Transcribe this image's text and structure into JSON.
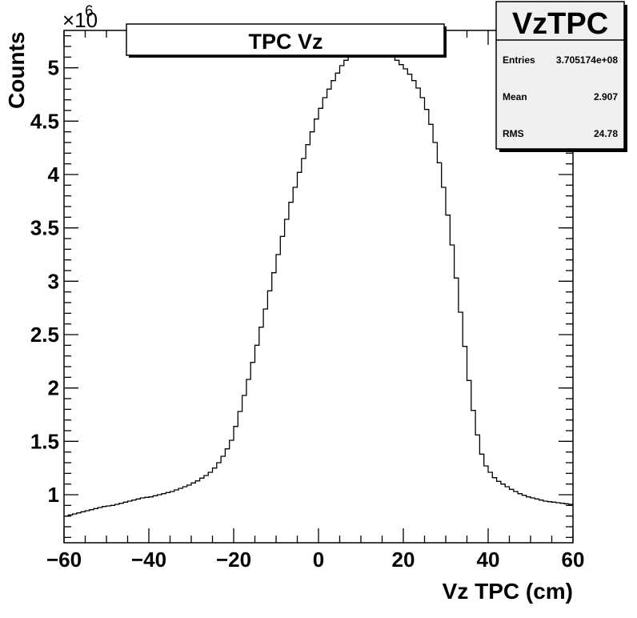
{
  "chart_data": {
    "type": "histogram",
    "title": "TPC Vz",
    "xlabel": "Vz TPC (cm)",
    "ylabel": "Counts",
    "y_multiplier_label": "×10",
    "y_multiplier_exp": "6",
    "xlim": [
      -60,
      60
    ],
    "ylim": [
      0.55,
      5.35
    ],
    "x_ticks": [
      -60,
      -40,
      -20,
      0,
      20,
      40,
      60
    ],
    "x_tick_labels": [
      "−60",
      "−40",
      "−20",
      "0",
      "20",
      "40",
      "60"
    ],
    "y_ticks": [
      1,
      1.5,
      2,
      2.5,
      3,
      3.5,
      4,
      4.5,
      5
    ],
    "y_tick_labels": [
      "1",
      "1.5",
      "2",
      "2.5",
      "3",
      "3.5",
      "4",
      "4.5",
      "5"
    ],
    "bin_width": 1,
    "bin_low_edge": -60,
    "values": [
      0.8,
      0.81,
      0.82,
      0.83,
      0.84,
      0.85,
      0.86,
      0.87,
      0.88,
      0.89,
      0.895,
      0.9,
      0.91,
      0.92,
      0.93,
      0.94,
      0.95,
      0.96,
      0.97,
      0.975,
      0.98,
      0.99,
      1.0,
      1.01,
      1.02,
      1.03,
      1.045,
      1.06,
      1.075,
      1.09,
      1.11,
      1.13,
      1.155,
      1.18,
      1.21,
      1.25,
      1.3,
      1.36,
      1.43,
      1.51,
      1.64,
      1.78,
      1.93,
      2.08,
      2.24,
      2.4,
      2.57,
      2.74,
      2.91,
      3.08,
      3.25,
      3.42,
      3.58,
      3.74,
      3.88,
      4.02,
      4.15,
      4.28,
      4.4,
      4.52,
      4.62,
      4.72,
      4.8,
      4.88,
      4.95,
      5.02,
      5.07,
      5.12,
      5.16,
      5.19,
      5.21,
      5.215,
      5.21,
      5.2,
      5.18,
      5.155,
      5.13,
      5.1,
      5.07,
      5.03,
      4.99,
      4.94,
      4.88,
      4.81,
      4.72,
      4.61,
      4.47,
      4.3,
      4.11,
      3.88,
      3.62,
      3.34,
      3.03,
      2.71,
      2.39,
      2.07,
      1.79,
      1.56,
      1.38,
      1.27,
      1.21,
      1.16,
      1.125,
      1.1,
      1.075,
      1.05,
      1.03,
      1.01,
      0.995,
      0.98,
      0.97,
      0.96,
      0.95,
      0.94,
      0.935,
      0.93,
      0.925,
      0.92,
      0.915,
      0.91
    ],
    "stats": {
      "name": "VzTPC",
      "rows": [
        {
          "label": "Entries",
          "value": "3.705174e+08"
        },
        {
          "label": "Mean",
          "value": "2.907"
        },
        {
          "label": "RMS",
          "value": "24.78"
        }
      ]
    },
    "line_color": "#000000",
    "frame_color": "#000000",
    "stats_fill": "#f0f0f0",
    "legend": "none"
  }
}
